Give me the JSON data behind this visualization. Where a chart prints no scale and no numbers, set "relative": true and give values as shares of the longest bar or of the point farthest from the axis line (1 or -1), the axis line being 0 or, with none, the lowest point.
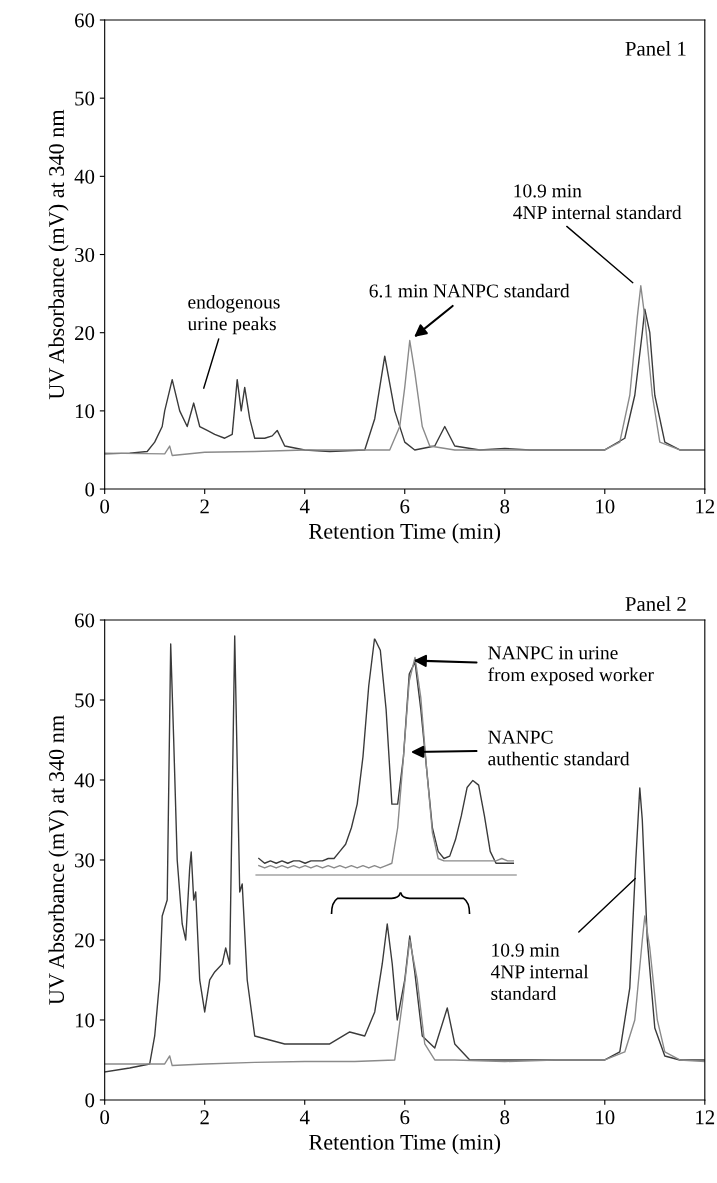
{
  "chart_data": [
    {
      "type": "line",
      "xlabel": "Retention Time (min)",
      "ylabel": "UV Absorbance (mV) at 340 nm",
      "xlim": [
        0,
        12
      ],
      "ylim": [
        0,
        60
      ],
      "xticks": [
        0,
        2,
        4,
        6,
        8,
        10,
        12
      ],
      "yticks": [
        0,
        10,
        20,
        30,
        40,
        50,
        60
      ],
      "grid": false,
      "legend": false,
      "marker": "none",
      "line_style": "solid",
      "series": [
        {
          "color": "#3a3a3a",
          "x": [
            0,
            0.5,
            0.85,
            1.0,
            1.15,
            1.2,
            1.35,
            1.5,
            1.65,
            1.78,
            1.9,
            2.05,
            2.2,
            2.4,
            2.55,
            2.65,
            2.73,
            2.8,
            2.9,
            3.0,
            3.2,
            3.35,
            3.45,
            3.6,
            4.0,
            4.5,
            5.2,
            5.4,
            5.6,
            5.8,
            6.0,
            6.2,
            6.6,
            6.8,
            7.0,
            7.5,
            8.0,
            8.5,
            9,
            10,
            10.4,
            10.6,
            10.75,
            10.8,
            10.9,
            11.0,
            11.2,
            11.5,
            12
          ],
          "values": [
            4.5,
            4.6,
            4.8,
            6,
            8,
            10,
            14,
            10,
            8,
            11,
            8,
            7.5,
            7,
            6.5,
            7,
            14,
            10,
            13,
            9,
            6.5,
            6.5,
            6.8,
            7.5,
            5.5,
            5,
            4.8,
            5,
            9,
            17,
            10,
            6,
            5,
            5.5,
            8,
            5.5,
            5,
            5.2,
            5,
            5,
            5,
            6.5,
            12,
            20,
            23,
            20,
            12,
            6,
            5,
            5
          ]
        },
        {
          "color": "#8a8a8a",
          "x": [
            0,
            1.2,
            1.3,
            1.35,
            2,
            3,
            4,
            5,
            5.7,
            5.9,
            6.0,
            6.1,
            6.2,
            6.35,
            6.5,
            7,
            8,
            9,
            10,
            10.3,
            10.5,
            10.65,
            10.72,
            10.8,
            10.95,
            11.1,
            11.5,
            12
          ],
          "values": [
            4.6,
            4.5,
            5.5,
            4.3,
            4.7,
            4.8,
            5,
            5,
            5,
            8,
            13,
            19,
            15,
            8,
            5.5,
            5,
            5,
            5,
            5,
            6,
            12,
            22,
            26,
            22,
            12,
            6,
            5,
            5
          ]
        }
      ],
      "annotations": [
        "Panel 1",
        "endogenous\nurine peaks",
        {
          "text": "6.1 min NANPC standard",
          "x": 6.1,
          "y": 19
        },
        "10.9 min\n4NP internal standard"
      ]
    },
    {
      "type": "line",
      "xlabel": "Retention Time (min)",
      "ylabel": "UV Absorbance (mV) at 340 nm",
      "xlim": [
        0,
        12
      ],
      "ylim": [
        0,
        60
      ],
      "xticks": [
        0,
        2,
        4,
        6,
        8,
        10,
        12
      ],
      "yticks": [
        0,
        10,
        20,
        30,
        40,
        50,
        60
      ],
      "grid": false,
      "legend": false,
      "marker": "none",
      "line_style": "solid",
      "series": [
        {
          "color": "#3a3a3a",
          "x": [
            0,
            0.5,
            0.9,
            1.0,
            1.1,
            1.15,
            1.25,
            1.32,
            1.38,
            1.45,
            1.55,
            1.62,
            1.7,
            1.73,
            1.78,
            1.82,
            1.9,
            2.0,
            2.1,
            2.2,
            2.35,
            2.42,
            2.5,
            2.6,
            2.65,
            2.7,
            2.75,
            2.85,
            3.0,
            3.3,
            3.6,
            4.0,
            4.5,
            4.9,
            5.2,
            5.4,
            5.55,
            5.65,
            5.75,
            5.85,
            6.0,
            6.1,
            6.2,
            6.35,
            6.6,
            6.85,
            7.0,
            7.3,
            8,
            9,
            10,
            10.3,
            10.5,
            10.62,
            10.7,
            10.75,
            10.85,
            11.0,
            11.2,
            11.5,
            12
          ],
          "values": [
            3.5,
            4,
            4.5,
            8,
            15,
            23,
            25,
            57,
            45,
            30,
            22,
            20,
            29,
            31,
            25,
            26,
            15,
            11,
            15,
            16,
            17,
            19,
            17,
            58,
            42,
            26,
            27,
            15,
            8,
            7.5,
            7,
            7,
            7,
            8.5,
            8,
            11,
            17,
            22,
            17,
            10,
            15,
            20.5,
            16,
            8,
            6.5,
            11.5,
            7,
            5,
            5,
            5,
            5,
            6,
            14,
            30,
            39,
            35,
            20,
            9,
            5.5,
            5,
            5
          ]
        },
        {
          "color": "#8a8a8a",
          "x": [
            0,
            1.2,
            1.3,
            1.35,
            2,
            3,
            4,
            5,
            5.8,
            5.95,
            6.1,
            6.25,
            6.4,
            6.6,
            7,
            8,
            9,
            10,
            10.4,
            10.6,
            10.75,
            10.8,
            10.9,
            11.05,
            11.2,
            11.5,
            12
          ],
          "values": [
            4.5,
            4.5,
            5.5,
            4.3,
            4.5,
            4.7,
            4.8,
            4.8,
            5,
            12,
            20,
            15,
            7,
            5,
            5,
            4.8,
            5,
            5,
            6,
            10,
            20,
            23,
            19,
            10,
            6,
            5,
            4.8
          ]
        }
      ],
      "annotations": [
        "Panel 2",
        {
          "text": "10.9 min\n4NP internal\nstandard",
          "x": 10.61,
          "y": 27.7
        }
      ]
    },
    {
      "type": "line",
      "relative": true,
      "legend": false,
      "marker": "none",
      "line_style": "solid",
      "categories": [
        null,
        null,
        null,
        null,
        null,
        null,
        null,
        null,
        null,
        null,
        null,
        null,
        null,
        null,
        null,
        null,
        null,
        null,
        null,
        null,
        null,
        null,
        null,
        null,
        null,
        null,
        null,
        null,
        null,
        null,
        null,
        null,
        null,
        null,
        null,
        null,
        null,
        null,
        null,
        null,
        null,
        null,
        null,
        null,
        null
      ],
      "series": [
        {
          "color": "#3a3a3a",
          "values": [
            0.07,
            0.05,
            0.06,
            0.05,
            0.06,
            0.05,
            0.06,
            0.06,
            0.05,
            0.06,
            0.06,
            0.06,
            0.07,
            0.07,
            0.1,
            0.13,
            0.2,
            0.3,
            0.5,
            0.8,
            1,
            0.95,
            0.7,
            0.3,
            0.3,
            0.5,
            0.85,
            0.9,
            0.7,
            0.45,
            0.2,
            0.1,
            0.07,
            0.08,
            0.15,
            0.25,
            0.37,
            0.4,
            0.38,
            0.25,
            0.1,
            0.05,
            0.05,
            0.05,
            0.05
          ]
        },
        {
          "color": "#8a8a8a",
          "values": [
            0.04,
            0.03,
            0.04,
            0.03,
            0.04,
            0.03,
            0.04,
            0.03,
            0.04,
            0.03,
            0.04,
            0.03,
            0.04,
            0.03,
            0.04,
            0.03,
            0.04,
            0.03,
            0.04,
            0.03,
            0.04,
            0.03,
            0.04,
            0.05,
            0.2,
            0.5,
            0.82,
            0.92,
            0.75,
            0.45,
            0.18,
            0.07,
            0.06,
            0.06,
            0.06,
            0.06,
            0.06,
            0.06,
            0.06,
            0.06,
            0.06,
            0.06,
            0.07,
            0.06,
            0.06
          ]
        }
      ],
      "annotations": [
        "NANPC in urine\nfrom exposed worker",
        "NANPC\nauthentic standard"
      ]
    }
  ]
}
